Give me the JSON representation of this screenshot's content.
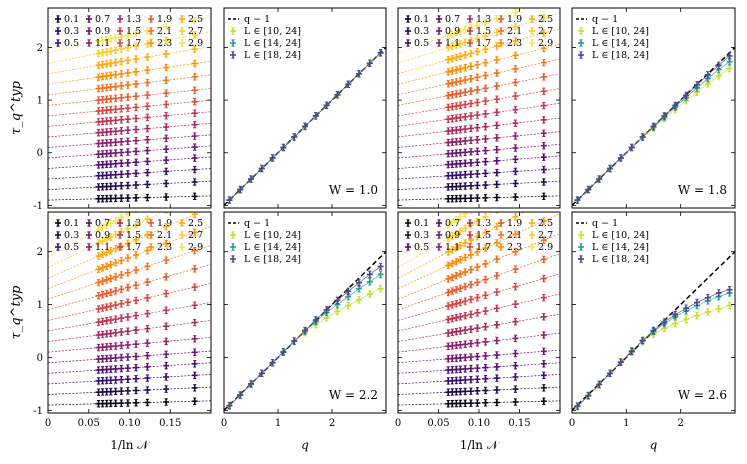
{
  "chart_data": {
    "type": "scatter",
    "title": "",
    "ylabel": "τ_q^typ",
    "ylim": [
      -1.05,
      2.75
    ],
    "q_values": [
      "0.1",
      "0.3",
      "0.5",
      "0.7",
      "0.9",
      "1.1",
      "1.3",
      "1.5",
      "1.7",
      "1.9",
      "2.1",
      "2.3",
      "2.5",
      "2.7",
      "2.9"
    ],
    "scaling_x": [
      0.062,
      0.067,
      0.072,
      0.077,
      0.083,
      0.09,
      0.098,
      0.108,
      0.122,
      0.145,
      0.18
    ],
    "rows": [
      {
        "panels": [
          {
            "kind": "scaling",
            "xlabel": "",
            "xlim": [
              0,
              0.2
            ],
            "xticks": [
              0,
              0.05,
              0.1,
              0.15
            ],
            "xticklabels": [
              "0",
              "0.05",
              "0.10",
              "0.15"
            ],
            "legend": [
              "0.1",
              "0.3",
              "0.5",
              "0.7",
              "0.9",
              "1.1",
              "1.3",
              "1.5",
              "1.7",
              "1.9",
              "2.1",
              "2.3",
              "2.5",
              "2.7",
              "2.9"
            ],
            "intercepts": [
              -0.9,
              -0.7,
              -0.5,
              -0.3,
              -0.1,
              0.1,
              0.3,
              0.5,
              0.7,
              0.9,
              1.1,
              1.3,
              1.5,
              1.7,
              1.9
            ],
            "slopes": [
              0.4,
              0.8,
              1.0,
              1.1,
              1.15,
              1.2,
              1.3,
              1.4,
              1.5,
              1.6,
              1.9,
              2.2,
              2.6,
              3.0,
              3.4
            ]
          },
          {
            "kind": "tau",
            "W_label": "W = 1.0",
            "xlabel": "",
            "xlim": [
              0,
              3
            ],
            "xticks": [
              0,
              1,
              2
            ],
            "xticklabels": [
              "0",
              "1",
              "2"
            ],
            "legend": [
              "q − 1",
              "L ∈ [10, 24]",
              "L ∈ [14, 24]",
              "L ∈ [18, 24]"
            ],
            "series": [
              {
                "name": "L ∈ [10, 24]",
                "color": "#c8dc2c",
                "values": [
                  -0.9,
                  -0.7,
                  -0.5,
                  -0.3,
                  -0.1,
                  0.1,
                  0.3,
                  0.5,
                  0.7,
                  0.9,
                  1.1,
                  1.3,
                  1.5,
                  1.7,
                  1.89
                ]
              },
              {
                "name": "L ∈ [14, 24]",
                "color": "#2a9d8f",
                "values": [
                  -0.9,
                  -0.7,
                  -0.5,
                  -0.3,
                  -0.1,
                  0.1,
                  0.3,
                  0.5,
                  0.7,
                  0.9,
                  1.1,
                  1.3,
                  1.5,
                  1.7,
                  1.9
                ]
              },
              {
                "name": "L ∈ [18, 24]",
                "color": "#4a4a8c",
                "values": [
                  -0.9,
                  -0.7,
                  -0.5,
                  -0.3,
                  -0.1,
                  0.1,
                  0.3,
                  0.5,
                  0.7,
                  0.9,
                  1.1,
                  1.3,
                  1.5,
                  1.7,
                  1.9
                ]
              }
            ]
          },
          {
            "kind": "scaling",
            "xlabel": "",
            "xlim": [
              0,
              0.2
            ],
            "xticks": [
              0,
              0.05,
              0.1,
              0.15
            ],
            "xticklabels": [
              "0",
              "0.05",
              "0.10",
              "0.15"
            ],
            "legend": [
              "0.1",
              "0.3",
              "0.5",
              "0.7",
              "0.9",
              "1.1",
              "1.3",
              "1.5",
              "1.7",
              "1.9",
              "2.1",
              "2.3",
              "2.5",
              "2.7",
              "2.9"
            ],
            "intercepts": [
              -0.9,
              -0.7,
              -0.5,
              -0.3,
              -0.1,
              0.1,
              0.3,
              0.5,
              0.7,
              0.9,
              1.1,
              1.3,
              1.5,
              1.7,
              1.9
            ],
            "slopes": [
              0.4,
              0.8,
              1.0,
              1.2,
              1.3,
              1.5,
              1.8,
              2.2,
              2.6,
              3.0,
              3.4,
              3.8,
              4.3,
              4.8,
              5.3
            ]
          },
          {
            "kind": "tau",
            "W_label": "W = 1.8",
            "xlabel": "",
            "xlim": [
              0,
              3
            ],
            "xticks": [
              0,
              1,
              2
            ],
            "xticklabels": [
              "0",
              "1",
              "2"
            ],
            "legend": [
              "q − 1",
              "L ∈ [10, 24]",
              "L ∈ [14, 24]",
              "L ∈ [18, 24]"
            ],
            "series": [
              {
                "name": "L ∈ [10, 24]",
                "color": "#c8dc2c",
                "values": [
                  -0.9,
                  -0.7,
                  -0.5,
                  -0.3,
                  -0.1,
                  0.1,
                  0.29,
                  0.47,
                  0.65,
                  0.82,
                  0.99,
                  1.15,
                  1.31,
                  1.46,
                  1.6
                ]
              },
              {
                "name": "L ∈ [14, 24]",
                "color": "#2a9d8f",
                "values": [
                  -0.9,
                  -0.7,
                  -0.5,
                  -0.3,
                  -0.1,
                  0.1,
                  0.3,
                  0.49,
                  0.68,
                  0.87,
                  1.05,
                  1.23,
                  1.41,
                  1.58,
                  1.73
                ]
              },
              {
                "name": "L ∈ [18, 24]",
                "color": "#4a4a8c",
                "values": [
                  -0.9,
                  -0.7,
                  -0.5,
                  -0.3,
                  -0.1,
                  0.1,
                  0.3,
                  0.5,
                  0.7,
                  0.9,
                  1.09,
                  1.29,
                  1.48,
                  1.66,
                  1.84
                ]
              }
            ]
          }
        ]
      },
      {
        "panels": [
          {
            "kind": "scaling",
            "xlabel": "1/ln 𝒩",
            "xlim": [
              0,
              0.2
            ],
            "xticks": [
              0,
              0.05,
              0.1,
              0.15
            ],
            "xticklabels": [
              "0",
              "0.05",
              "0.10",
              "0.15"
            ],
            "legend": [
              "0.1",
              "0.3",
              "0.5",
              "0.7",
              "0.9",
              "1.1",
              "1.3",
              "1.5",
              "1.7",
              "1.9",
              "2.1",
              "2.3",
              "2.5",
              "2.7",
              "2.9"
            ],
            "intercepts": [
              -0.9,
              -0.7,
              -0.5,
              -0.3,
              -0.1,
              0.1,
              0.3,
              0.5,
              0.7,
              0.9,
              1.1,
              1.3,
              1.5,
              1.7,
              1.9
            ],
            "slopes": [
              0.4,
              0.7,
              0.9,
              1.0,
              1.1,
              1.4,
              2.0,
              2.7,
              3.5,
              4.3,
              5.1,
              5.9,
              6.7,
              7.5,
              8.3
            ]
          },
          {
            "kind": "tau",
            "W_label": "W = 2.2",
            "xlabel": "q",
            "xlim": [
              0,
              3
            ],
            "xticks": [
              0,
              1,
              2
            ],
            "xticklabels": [
              "0",
              "1",
              "2"
            ],
            "legend": [
              "q − 1",
              "L ∈ [10, 24]",
              "L ∈ [14, 24]",
              "L ∈ [18, 24]"
            ],
            "series": [
              {
                "name": "L ∈ [10, 24]",
                "color": "#c8dc2c",
                "values": [
                  -0.92,
                  -0.72,
                  -0.51,
                  -0.3,
                  -0.1,
                  0.11,
                  0.3,
                  0.47,
                  0.62,
                  0.75,
                  0.87,
                  0.98,
                  1.09,
                  1.2,
                  1.3
                ]
              },
              {
                "name": "L ∈ [14, 24]",
                "color": "#2a9d8f",
                "values": [
                  -0.91,
                  -0.71,
                  -0.5,
                  -0.3,
                  -0.1,
                  0.11,
                  0.31,
                  0.5,
                  0.68,
                  0.85,
                  1.0,
                  1.15,
                  1.3,
                  1.43,
                  1.57
                ]
              },
              {
                "name": "L ∈ [18, 24]",
                "color": "#4a4a8c",
                "values": [
                  -0.91,
                  -0.71,
                  -0.5,
                  -0.3,
                  -0.1,
                  0.1,
                  0.31,
                  0.51,
                  0.71,
                  0.9,
                  1.08,
                  1.25,
                  1.41,
                  1.57,
                  1.72
                ]
              }
            ]
          },
          {
            "kind": "scaling",
            "xlabel": "1/ln 𝒩",
            "xlim": [
              0,
              0.2
            ],
            "xticks": [
              0,
              0.05,
              0.1,
              0.15
            ],
            "xticklabels": [
              "0",
              "0.05",
              "0.10",
              "0.15"
            ],
            "legend": [
              "0.1",
              "0.3",
              "0.5",
              "0.7",
              "0.9",
              "1.1",
              "1.3",
              "1.5",
              "1.7",
              "1.9",
              "2.1",
              "2.3",
              "2.5",
              "2.7",
              "2.9"
            ],
            "intercepts": [
              -0.9,
              -0.7,
              -0.5,
              -0.3,
              -0.1,
              0.1,
              0.3,
              0.5,
              0.7,
              0.9,
              1.1,
              1.3,
              1.5,
              1.7,
              1.9
            ],
            "slopes": [
              0.4,
              0.7,
              0.9,
              1.0,
              1.2,
              1.8,
              2.6,
              3.5,
              4.4,
              5.3,
              6.2,
              7.1,
              8.0,
              8.9,
              9.8
            ]
          },
          {
            "kind": "tau",
            "W_label": "W = 2.6",
            "xlabel": "q",
            "xlim": [
              0,
              3
            ],
            "xticks": [
              0,
              1,
              2
            ],
            "xticklabels": [
              "0",
              "1",
              "2"
            ],
            "legend": [
              "q − 1",
              "L ∈ [10, 24]",
              "L ∈ [14, 24]",
              "L ∈ [18, 24]"
            ],
            "series": [
              {
                "name": "L ∈ [10, 24]",
                "color": "#c8dc2c",
                "values": [
                  -0.93,
                  -0.73,
                  -0.52,
                  -0.3,
                  -0.08,
                  0.13,
                  0.3,
                  0.44,
                  0.55,
                  0.64,
                  0.72,
                  0.79,
                  0.86,
                  0.92,
                  0.98
                ]
              },
              {
                "name": "L ∈ [14, 24]",
                "color": "#2a9d8f",
                "values": [
                  -0.92,
                  -0.72,
                  -0.51,
                  -0.3,
                  -0.09,
                  0.12,
                  0.32,
                  0.49,
                  0.64,
                  0.77,
                  0.88,
                  0.98,
                  1.07,
                  1.15,
                  1.22
                ]
              },
              {
                "name": "L ∈ [18, 24]",
                "color": "#4a4a8c",
                "values": [
                  -0.92,
                  -0.72,
                  -0.51,
                  -0.3,
                  -0.09,
                  0.11,
                  0.32,
                  0.51,
                  0.67,
                  0.81,
                  0.93,
                  1.04,
                  1.13,
                  1.22,
                  1.28
                ]
              }
            ]
          }
        ]
      }
    ]
  }
}
